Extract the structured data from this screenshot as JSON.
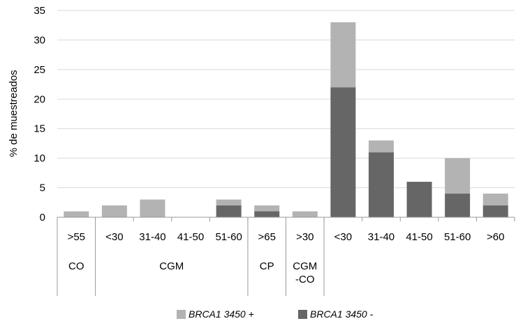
{
  "chart_data": {
    "type": "bar",
    "stacked": true,
    "ylabel": "% de muestreados",
    "ylim": [
      0,
      35
    ],
    "yticks": [
      0,
      5,
      10,
      15,
      20,
      25,
      30,
      35
    ],
    "grid": true,
    "legend_position": "bottom",
    "categories": [
      ">55",
      "<30",
      "31-40",
      "41-50",
      "51-60",
      ">65",
      ">30",
      "<30",
      "31-40",
      "41-50",
      "51-60",
      ">60"
    ],
    "groups": [
      {
        "label": "CO",
        "span": 1
      },
      {
        "label": "CGM",
        "span": 4
      },
      {
        "label": "CP",
        "span": 1
      },
      {
        "label": "CGM -CO",
        "span": 1
      },
      {
        "label": "",
        "span": 5
      }
    ],
    "series": [
      {
        "name": "BRCA1 3450 -",
        "color": "#666666",
        "values": [
          0,
          0,
          0,
          0,
          2,
          1,
          0,
          22,
          11,
          6,
          4,
          2
        ]
      },
      {
        "name": "BRCA1 3450 +",
        "color": "#b3b3b3",
        "values": [
          1,
          2,
          3,
          0,
          1,
          1,
          1,
          11,
          2,
          0,
          6,
          2
        ]
      }
    ]
  }
}
